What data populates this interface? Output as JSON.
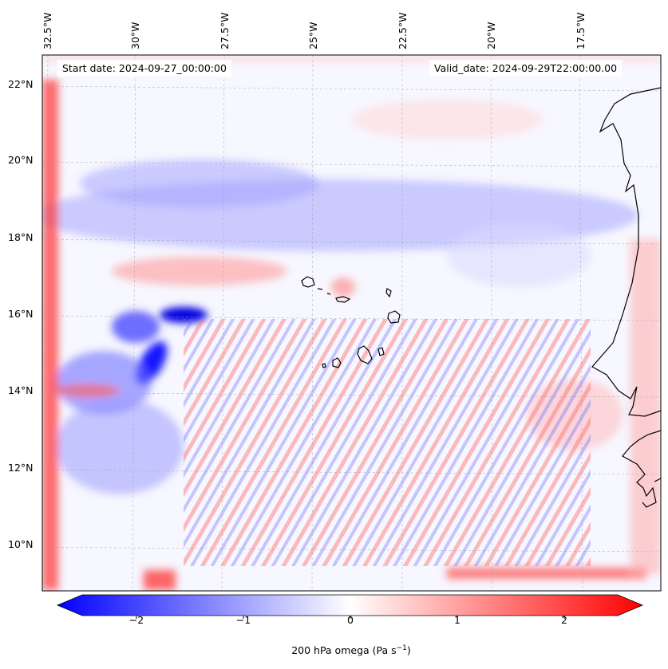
{
  "map": {
    "lat_labels": [
      "22°N",
      "20°N",
      "18°N",
      "16°N",
      "14°N",
      "12°N",
      "10°N"
    ],
    "lon_labels": [
      "32.5°W",
      "30°W",
      "27.5°W",
      "25°W",
      "22.5°W",
      "20°W",
      "17.5°W"
    ],
    "start_date": "Start date: 2024-09-27_00:00:00",
    "valid_date": "Valid_date: 2024-09-29T22:00:00.00",
    "field": "200 hPa omega",
    "colormap": "bwr",
    "colors": {
      "negative": "#0000ff",
      "zero": "#ffffff",
      "positive": "#ff0000"
    }
  },
  "colorbar": {
    "label_text": "200 hPa omega (Pa s",
    "label_exp": "−1",
    "label_close": ")",
    "ticks": [
      "−2",
      "−1",
      "0",
      "1",
      "2"
    ],
    "range": [
      -2.5,
      2.5
    ],
    "extend": "both"
  }
}
